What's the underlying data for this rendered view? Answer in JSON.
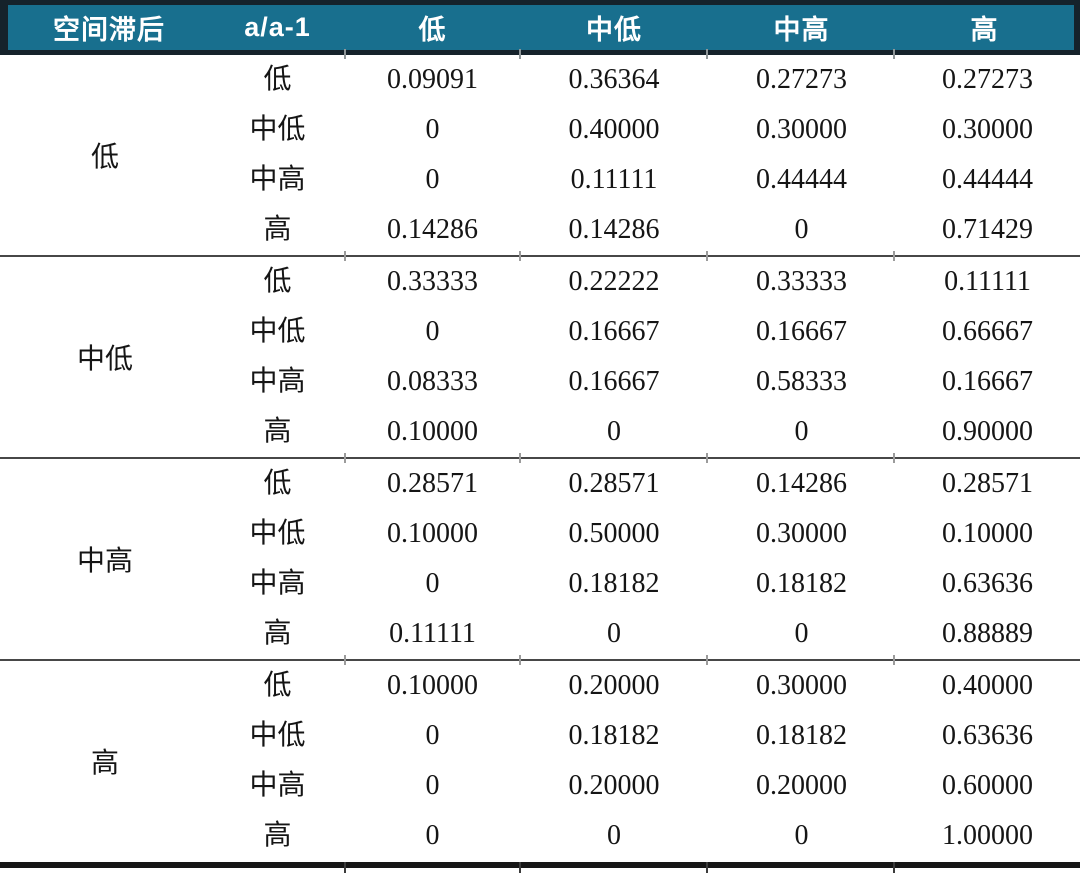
{
  "table": {
    "header": {
      "spatial_lag": "空间滞后",
      "ratio": "a/a-1",
      "columns": [
        "低",
        "中低",
        "中高",
        "高"
      ]
    },
    "groups": [
      {
        "label": "低",
        "rows": [
          {
            "label": "低",
            "values": [
              "0.09091",
              "0.36364",
              "0.27273",
              "0.27273"
            ]
          },
          {
            "label": "中低",
            "values": [
              "0",
              "0.40000",
              "0.30000",
              "0.30000"
            ]
          },
          {
            "label": "中高",
            "values": [
              "0",
              "0.11111",
              "0.44444",
              "0.44444"
            ]
          },
          {
            "label": "高",
            "values": [
              "0.14286",
              "0.14286",
              "0",
              "0.71429"
            ]
          }
        ]
      },
      {
        "label": "中低",
        "rows": [
          {
            "label": "低",
            "values": [
              "0.33333",
              "0.22222",
              "0.33333",
              "0.11111"
            ]
          },
          {
            "label": "中低",
            "values": [
              "0",
              "0.16667",
              "0.16667",
              "0.66667"
            ]
          },
          {
            "label": "中高",
            "values": [
              "0.08333",
              "0.16667",
              "0.58333",
              "0.16667"
            ]
          },
          {
            "label": "高",
            "values": [
              "0.10000",
              "0",
              "0",
              "0.90000"
            ]
          }
        ]
      },
      {
        "label": "中高",
        "rows": [
          {
            "label": "低",
            "values": [
              "0.28571",
              "0.28571",
              "0.14286",
              "0.28571"
            ]
          },
          {
            "label": "中低",
            "values": [
              "0.10000",
              "0.50000",
              "0.30000",
              "0.10000"
            ]
          },
          {
            "label": "中高",
            "values": [
              "0",
              "0.18182",
              "0.18182",
              "0.63636"
            ]
          },
          {
            "label": "高",
            "values": [
              "0.11111",
              "0",
              "0",
              "0.88889"
            ]
          }
        ]
      },
      {
        "label": "高",
        "rows": [
          {
            "label": "低",
            "values": [
              "0.10000",
              "0.20000",
              "0.30000",
              "0.40000"
            ]
          },
          {
            "label": "中低",
            "values": [
              "0",
              "0.18182",
              "0.18182",
              "0.63636"
            ]
          },
          {
            "label": "中高",
            "values": [
              "0",
              "0.20000",
              "0.20000",
              "0.60000"
            ]
          },
          {
            "label": "高",
            "values": [
              "0",
              "0",
              "0",
              "1.00000"
            ]
          }
        ]
      }
    ],
    "colors": {
      "header_bg": "#186f8e",
      "header_text": "#ffffff",
      "header_border": "#15222b",
      "group_rule": "#474747",
      "bottom_rule": "#161616",
      "body_text": "#151515"
    }
  }
}
